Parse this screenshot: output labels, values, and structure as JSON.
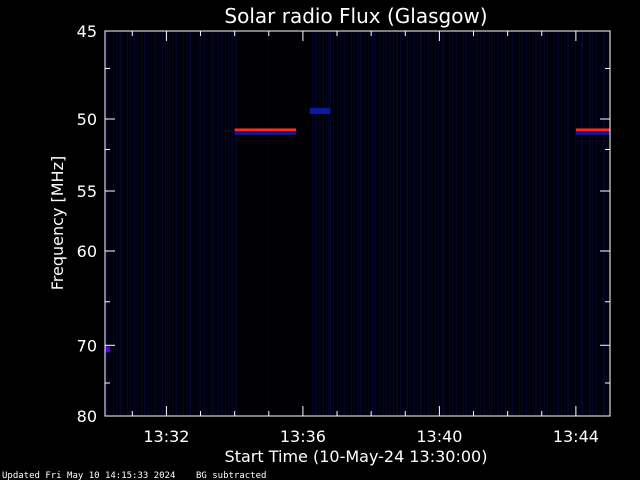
{
  "chart_data": {
    "type": "heatmap",
    "title": "Solar radio Flux (Glasgow)",
    "xlabel": "Start Time (10-May-24 13:30:00)",
    "ylabel": "Frequency [MHz]",
    "x_range_minutes": [
      0.2,
      15.0
    ],
    "y_range_mhz": [
      45,
      80
    ],
    "y_scale": "reciprocal",
    "x_ticks": [
      {
        "minute": 2,
        "label": "13:32"
      },
      {
        "minute": 6,
        "label": "13:36"
      },
      {
        "minute": 10,
        "label": "13:40"
      },
      {
        "minute": 14,
        "label": "13:44"
      }
    ],
    "y_ticks": [
      {
        "mhz": 45,
        "label": "45"
      },
      {
        "mhz": 50,
        "label": "50"
      },
      {
        "mhz": 55,
        "label": "55"
      },
      {
        "mhz": 60,
        "label": "60"
      },
      {
        "mhz": 70,
        "label": "70"
      },
      {
        "mhz": 80,
        "label": "80"
      }
    ],
    "y_minor_ticks_mhz": [
      47,
      52,
      65,
      75
    ],
    "background_color": "#000010",
    "features": [
      {
        "name": "interference-line-1",
        "x_start": 4.0,
        "x_end": 5.8,
        "mhz": 50.7,
        "color": "#ff2a1a"
      },
      {
        "name": "interference-line-2",
        "x_start": 14.0,
        "x_end": 15.0,
        "mhz": 50.7,
        "color": "#ff2a1a"
      },
      {
        "name": "blob-left",
        "x_start": 0.2,
        "x_end": 0.35,
        "mhz": 70.5,
        "color": "#5a00d0"
      },
      {
        "name": "blob-mid",
        "x_start": 6.2,
        "x_end": 6.8,
        "mhz": 49.5,
        "color": "#0a1aa0"
      }
    ]
  },
  "footer": {
    "updated": "Updated Fri May 10 14:15:33 2024",
    "bg": "BG subtracted"
  }
}
